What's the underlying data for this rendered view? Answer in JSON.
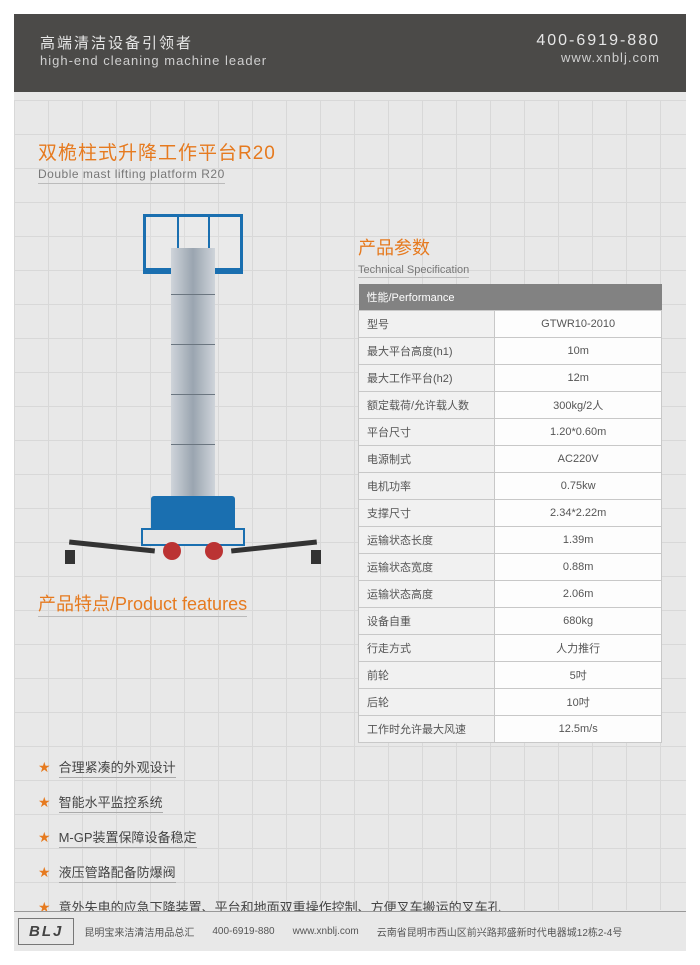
{
  "header": {
    "tagline_cn": "高端清洁设备引领者",
    "tagline_en": "high-end  cleaning machine leader",
    "phone": "400-6919-880",
    "url": "www.xnblj.com"
  },
  "product": {
    "title_cn": "双桅柱式升降工作平台R20",
    "title_en": "Double mast lifting platform R20"
  },
  "spec_section": {
    "title_cn": "产品参数",
    "title_en": "Technical Specification",
    "header": "性能/Performance",
    "rows": [
      {
        "k": "型号",
        "v": "GTWR10-2010"
      },
      {
        "k": "最大平台高度(h1)",
        "v": "10m"
      },
      {
        "k": "最大工作平台(h2)",
        "v": "12m"
      },
      {
        "k": "额定载荷/允许载人数",
        "v": "300kg/2人"
      },
      {
        "k": "平台尺寸",
        "v": "1.20*0.60m"
      },
      {
        "k": "电源制式",
        "v": "AC220V"
      },
      {
        "k": "电机功率",
        "v": "0.75kw"
      },
      {
        "k": "支撑尺寸",
        "v": "2.34*2.22m"
      },
      {
        "k": "运输状态长度",
        "v": "1.39m"
      },
      {
        "k": "运输状态宽度",
        "v": "0.88m"
      },
      {
        "k": "运输状态高度",
        "v": "2.06m"
      },
      {
        "k": "设备自重",
        "v": "680kg"
      },
      {
        "k": "行走方式",
        "v": "人力推行"
      },
      {
        "k": "前轮",
        "v": "5吋"
      },
      {
        "k": "后轮",
        "v": "10吋"
      },
      {
        "k": "工作时允许最大风速",
        "v": "12.5m/s"
      }
    ]
  },
  "features": {
    "title": "产品特点/Product features",
    "items": [
      "合理紧凑的外观设计",
      "智能水平监控系统",
      "M-GP装置保障设备稳定",
      "液压管路配备防爆阀",
      "意外失电的应急下降装置、平台和地面双重操作控制、方便叉车搬运的叉车孔"
    ]
  },
  "footer": {
    "logo": "BLJ",
    "company": "昆明宝来洁清洁用品总汇",
    "phone": "400-6919-880",
    "url": "www.xnblj.com",
    "address": "云南省昆明市西山区前兴路邦盛新时代电器城12栋2-4号"
  },
  "colors": {
    "accent": "#e67a1f",
    "header_bg": "#4b4a48",
    "lift_blue": "#1a6fb0"
  }
}
